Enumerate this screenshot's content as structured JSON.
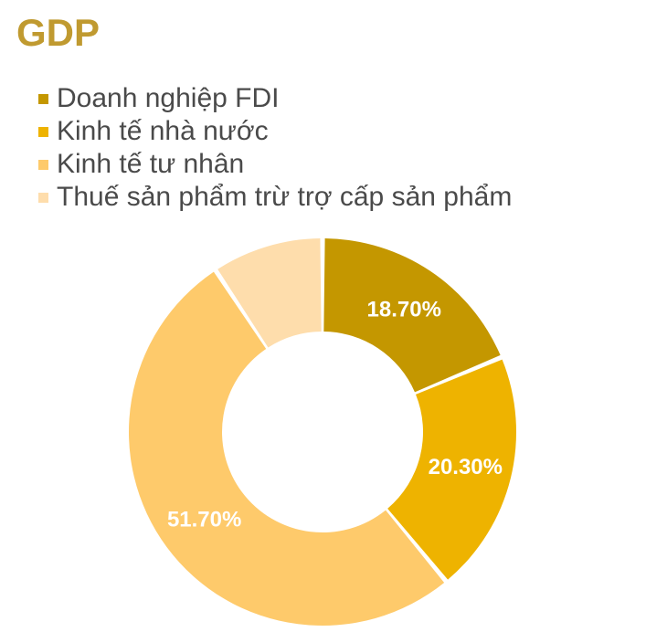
{
  "title": "GDP",
  "chart_data": {
    "type": "pie",
    "variant": "donut",
    "title": "GDP",
    "legend_position": "top-left",
    "categories": [
      "Doanh nghiệp FDI",
      "Kinh tế nhà nước",
      "Kinh tế tư nhân",
      "Thuế sản phẩm trừ trợ cấp sản phẩm"
    ],
    "values": [
      18.7,
      20.3,
      51.7,
      9.3
    ],
    "data_labels": [
      "18.70%",
      "20.30%",
      "51.70%",
      ""
    ],
    "colors": [
      "#C49700",
      "#EEB300",
      "#FECA6B",
      "#FEDDAC"
    ],
    "label_color": "#FFFFFF"
  }
}
